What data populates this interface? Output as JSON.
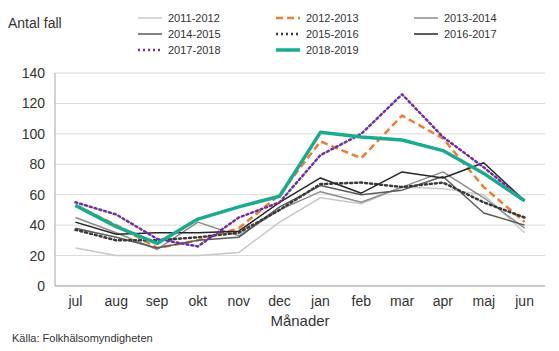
{
  "chart_data": {
    "type": "line",
    "y_label": "Antal fall",
    "x_label": "Månader",
    "source": "Källa: Folkhälsomyndigheten",
    "categories": [
      "jul",
      "aug",
      "sep",
      "okt",
      "nov",
      "dec",
      "jan",
      "feb",
      "mar",
      "apr",
      "maj",
      "jun"
    ],
    "ylim": [
      0,
      140
    ],
    "yticks": [
      0,
      20,
      40,
      60,
      80,
      100,
      120,
      140
    ],
    "grid": true,
    "legend": "top",
    "series": [
      {
        "name": "2011-2012",
        "color": "#c8c8c8",
        "line_style": "solid",
        "values": [
          25,
          20,
          20,
          20,
          22,
          42,
          58,
          54,
          65,
          64,
          60,
          35
        ]
      },
      {
        "name": "2012-2013",
        "color": "#ed7d31",
        "line_style": "dashed",
        "values": [
          53,
          40,
          25,
          30,
          38,
          60,
          95,
          84,
          112,
          97,
          65,
          42
        ]
      },
      {
        "name": "2013-2014",
        "color": "#8c8c8c",
        "line_style": "solid",
        "values": [
          45,
          35,
          24,
          42,
          33,
          50,
          62,
          55,
          65,
          75,
          58,
          38
        ]
      },
      {
        "name": "2014-2015",
        "color": "#5a5a5a",
        "line_style": "solid",
        "values": [
          38,
          32,
          25,
          30,
          32,
          52,
          66,
          60,
          63,
          72,
          48,
          40
        ]
      },
      {
        "name": "2015-2016",
        "color": "#3a3a3a",
        "line_style": "dotted",
        "values": [
          37,
          30,
          30,
          32,
          35,
          50,
          67,
          68,
          65,
          68,
          55,
          45
        ]
      },
      {
        "name": "2016-2017",
        "color": "#262626",
        "line_style": "solid",
        "values": [
          42,
          34,
          35,
          35,
          36,
          55,
          71,
          61,
          75,
          71,
          81,
          56
        ]
      },
      {
        "name": "2017-2018",
        "color": "#7030a0",
        "line_style": "dotted",
        "values": [
          55,
          47,
          31,
          26,
          45,
          55,
          86,
          100,
          126,
          98,
          78,
          56
        ]
      },
      {
        "name": "2018-2019",
        "color": "#1aab8e",
        "line_style": "solid",
        "values": [
          53,
          39,
          28,
          44,
          52,
          59,
          101,
          98,
          96,
          89,
          74,
          56
        ]
      }
    ]
  }
}
